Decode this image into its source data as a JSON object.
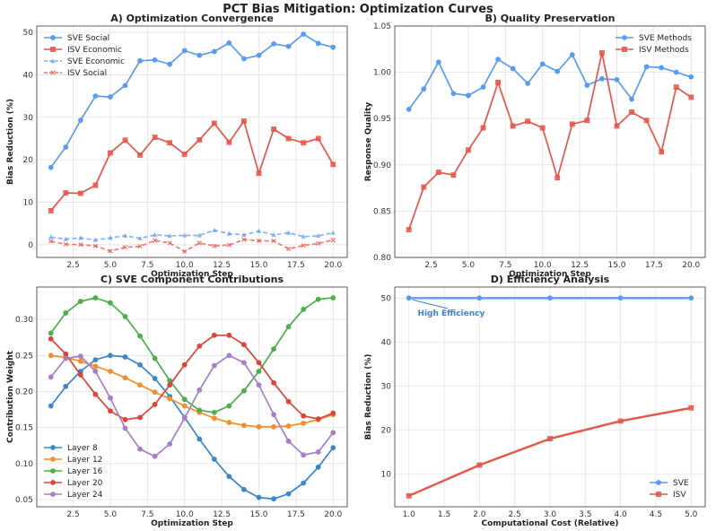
{
  "figure": {
    "title": "PCT Bias Mitigation: Optimization Curves"
  },
  "chart_data": [
    {
      "id": "A",
      "type": "line",
      "title": "A) Optimization Convergence",
      "xlabel": "Optimization Step",
      "ylabel": "Bias Reduction (%)",
      "xlim": [
        0.05,
        20.95
      ],
      "ylim": [
        -3,
        51.5
      ],
      "xticks": [
        2.5,
        5.0,
        7.5,
        10.0,
        12.5,
        15.0,
        17.5,
        20.0
      ],
      "xtick_labels": [
        "2.5",
        "5.0",
        "7.5",
        "10.0",
        "12.5",
        "15.0",
        "17.5",
        "20.0"
      ],
      "yticks": [
        0,
        10,
        20,
        30,
        40,
        50
      ],
      "ytick_labels": [
        "0",
        "10",
        "20",
        "30",
        "40",
        "50"
      ],
      "legend": "top-left",
      "x": [
        1,
        2,
        3,
        4,
        5,
        6,
        7,
        8,
        9,
        10,
        11,
        12,
        13,
        14,
        15,
        16,
        17,
        18,
        19,
        20
      ],
      "series": [
        {
          "name": "SVE Social",
          "color": "#5b9bef",
          "style": "solid",
          "marker": "circle",
          "values": [
            18.2,
            23.0,
            29.3,
            35.0,
            34.8,
            37.5,
            43.3,
            43.5,
            42.5,
            45.7,
            44.6,
            45.5,
            47.5,
            43.8,
            44.6,
            47.3,
            46.7,
            49.6,
            47.4,
            46.5
          ]
        },
        {
          "name": "ISV Economic",
          "color": "#e5564a",
          "style": "solid",
          "marker": "square",
          "values": [
            8.0,
            12.2,
            12.1,
            14.0,
            21.6,
            24.6,
            21.1,
            25.3,
            24.0,
            21.3,
            24.7,
            28.6,
            24.1,
            29.1,
            16.8,
            27.2,
            25.0,
            24.0,
            25.0,
            18.9
          ]
        },
        {
          "name": "SVE Economic",
          "color": "#5b9bef",
          "style": "dashed",
          "marker": "triangle",
          "values": [
            1.8,
            1.3,
            1.6,
            1.1,
            1.6,
            2.1,
            1.5,
            2.3,
            2.1,
            2.2,
            2.2,
            3.4,
            2.6,
            2.3,
            3.2,
            2.3,
            2.8,
            1.9,
            2.1,
            2.8
          ]
        },
        {
          "name": "ISV Social",
          "color": "#e5564a",
          "style": "dashed",
          "marker": "x",
          "values": [
            0.8,
            0.1,
            0.0,
            -0.3,
            -1.5,
            -0.6,
            -0.4,
            1.0,
            0.4,
            -1.6,
            0.4,
            -0.3,
            -0.1,
            1.2,
            0.9,
            0.9,
            -1.0,
            -0.2,
            0.3,
            1.1
          ]
        }
      ]
    },
    {
      "id": "B",
      "type": "line",
      "title": "B) Quality Preservation",
      "xlabel": "Optimization Step",
      "ylabel": "Response Quality",
      "xlim": [
        0.05,
        20.95
      ],
      "ylim": [
        0.8,
        1.05
      ],
      "xticks": [
        2.5,
        5.0,
        7.5,
        10.0,
        12.5,
        15.0,
        17.5,
        20.0
      ],
      "xtick_labels": [
        "2.5",
        "5.0",
        "7.5",
        "10.0",
        "12.5",
        "15.0",
        "17.5",
        "20.0"
      ],
      "yticks": [
        0.8,
        0.85,
        0.9,
        0.95,
        1.0,
        1.05
      ],
      "ytick_labels": [
        "0.80",
        "0.85",
        "0.90",
        "0.95",
        "1.00",
        "1.05"
      ],
      "legend": "top-right",
      "x": [
        1,
        2,
        3,
        4,
        5,
        6,
        7,
        8,
        9,
        10,
        11,
        12,
        13,
        14,
        15,
        16,
        17,
        18,
        19,
        20
      ],
      "series": [
        {
          "name": "SVE Methods",
          "color": "#5b9bef",
          "style": "solid",
          "marker": "circle",
          "values": [
            0.96,
            0.982,
            1.011,
            0.977,
            0.975,
            0.984,
            1.014,
            1.004,
            0.988,
            1.009,
            1.001,
            1.019,
            0.986,
            0.993,
            0.992,
            0.971,
            1.006,
            1.005,
            1.0,
            0.995
          ]
        },
        {
          "name": "ISV Methods",
          "color": "#e5564a",
          "style": "solid",
          "marker": "square",
          "values": [
            0.83,
            0.876,
            0.892,
            0.889,
            0.916,
            0.94,
            0.989,
            0.942,
            0.947,
            0.94,
            0.886,
            0.944,
            0.948,
            1.021,
            0.942,
            0.957,
            0.948,
            0.914,
            0.984,
            0.973
          ]
        }
      ]
    },
    {
      "id": "C",
      "type": "line",
      "title": "C) SVE Component Contributions",
      "xlabel": "Optimization Step",
      "ylabel": "Contribution Weight",
      "xlim": [
        0.05,
        20.95
      ],
      "ylim": [
        0.04,
        0.345
      ],
      "xticks": [
        2.5,
        5.0,
        7.5,
        10.0,
        12.5,
        15.0,
        17.5,
        20.0
      ],
      "xtick_labels": [
        "2.5",
        "5.0",
        "7.5",
        "10.0",
        "12.5",
        "15.0",
        "17.5",
        "20.0"
      ],
      "yticks": [
        0.05,
        0.1,
        0.15,
        0.2,
        0.25,
        0.3
      ],
      "ytick_labels": [
        "0.05",
        "0.10",
        "0.15",
        "0.20",
        "0.25",
        "0.30"
      ],
      "legend": "bottom-left",
      "x": [
        1,
        2,
        3,
        4,
        5,
        6,
        7,
        8,
        9,
        10,
        11,
        12,
        13,
        14,
        15,
        16,
        17,
        18,
        19,
        20
      ],
      "series": [
        {
          "name": "Layer 8",
          "color": "#3a86c8",
          "style": "solid",
          "marker": "circle",
          "values": [
            0.18,
            0.207,
            0.228,
            0.244,
            0.25,
            0.248,
            0.237,
            0.218,
            0.193,
            0.164,
            0.134,
            0.106,
            0.082,
            0.064,
            0.053,
            0.051,
            0.058,
            0.073,
            0.095,
            0.122
          ]
        },
        {
          "name": "Layer 12",
          "color": "#f28e2b",
          "style": "solid",
          "marker": "circle",
          "values": [
            0.25,
            0.247,
            0.242,
            0.235,
            0.228,
            0.219,
            0.209,
            0.199,
            0.19,
            0.18,
            0.171,
            0.163,
            0.157,
            0.153,
            0.151,
            0.151,
            0.152,
            0.156,
            0.161,
            0.168
          ]
        },
        {
          "name": "Layer 16",
          "color": "#4cae4c",
          "style": "solid",
          "marker": "circle",
          "values": [
            0.281,
            0.309,
            0.325,
            0.33,
            0.323,
            0.304,
            0.277,
            0.246,
            0.215,
            0.189,
            0.174,
            0.171,
            0.18,
            0.201,
            0.228,
            0.259,
            0.29,
            0.314,
            0.328,
            0.33
          ]
        },
        {
          "name": "Layer 20",
          "color": "#d9453b",
          "style": "solid",
          "marker": "circle",
          "values": [
            0.273,
            0.252,
            0.223,
            0.196,
            0.173,
            0.161,
            0.164,
            0.182,
            0.209,
            0.237,
            0.263,
            0.278,
            0.278,
            0.265,
            0.24,
            0.212,
            0.186,
            0.166,
            0.162,
            0.17
          ]
        },
        {
          "name": "Layer 24",
          "color": "#a67fc8",
          "style": "solid",
          "marker": "circle",
          "values": [
            0.22,
            0.246,
            0.249,
            0.228,
            0.191,
            0.149,
            0.12,
            0.11,
            0.127,
            0.163,
            0.202,
            0.236,
            0.25,
            0.24,
            0.209,
            0.168,
            0.131,
            0.112,
            0.116,
            0.143
          ]
        }
      ]
    },
    {
      "id": "D",
      "type": "line",
      "title": "D) Efficiency Analysis",
      "xlabel": "Computational Cost (Relative)",
      "ylabel": "Bias Reduction (%)",
      "xlim": [
        0.8,
        5.2
      ],
      "ylim": [
        2.5,
        52.5
      ],
      "xticks": [
        1.0,
        1.5,
        2.0,
        2.5,
        3.0,
        3.5,
        4.0,
        4.5,
        5.0
      ],
      "xtick_labels": [
        "1.0",
        "1.5",
        "2.0",
        "2.5",
        "3.0",
        "3.5",
        "4.0",
        "4.5",
        "5.0"
      ],
      "yticks": [
        10,
        20,
        30,
        40,
        50
      ],
      "ytick_labels": [
        "10",
        "20",
        "30",
        "40",
        "50"
      ],
      "legend": "bottom-right",
      "x": [
        1,
        2,
        3,
        4,
        5
      ],
      "series": [
        {
          "name": "SVE",
          "color": "#5b9bef",
          "style": "solid",
          "marker": "circle",
          "values": [
            50,
            50,
            50,
            50,
            50
          ]
        },
        {
          "name": "ISV",
          "color": "#e5564a",
          "style": "solid",
          "marker": "square",
          "values": [
            5,
            12,
            18,
            22,
            25
          ]
        }
      ],
      "annotation": {
        "text": "High Efficiency",
        "color": "#3b82e0",
        "point": [
          1,
          50
        ],
        "text_at": [
          1.6,
          46
        ]
      }
    }
  ]
}
